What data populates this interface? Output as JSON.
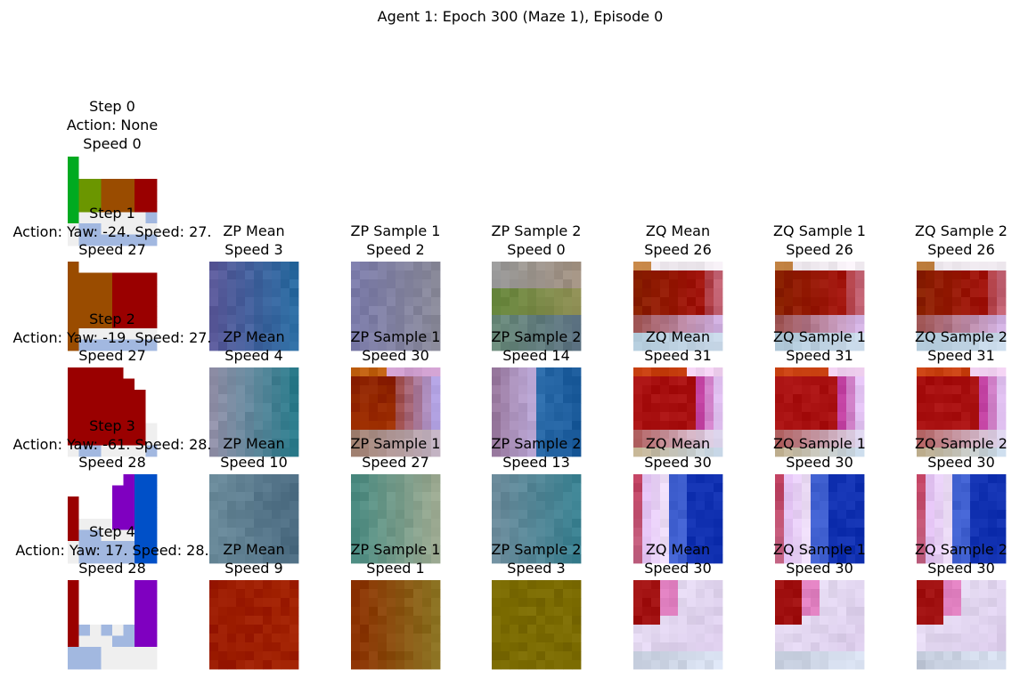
{
  "figure": {
    "suptitle": "Agent 1: Epoch 300 (Maze 1), Episode 0"
  },
  "step0": {
    "title_lines": [
      "Step 0",
      "Action: None",
      "Speed 0"
    ]
  },
  "rows": [
    {
      "step_label": "Step 1",
      "action_label": "Action: Yaw: -24. Speed: 27.",
      "obs_speed": "Speed 27",
      "panels": [
        {
          "title": "ZP Mean",
          "speed": "Speed 3"
        },
        {
          "title": "ZP Sample 1",
          "speed": "Speed 2"
        },
        {
          "title": "ZP Sample 2",
          "speed": "Speed 0"
        },
        {
          "title": "ZQ Mean",
          "speed": "Speed 26"
        },
        {
          "title": "ZQ Sample 1",
          "speed": "Speed 26"
        },
        {
          "title": "ZQ Sample 2",
          "speed": "Speed 26"
        }
      ]
    },
    {
      "step_label": "Step 2",
      "action_label": "Action: Yaw: -19. Speed: 27.",
      "obs_speed": "Speed 27",
      "panels": [
        {
          "title": "ZP Mean",
          "speed": "Speed 4"
        },
        {
          "title": "ZP Sample 1",
          "speed": "Speed 30"
        },
        {
          "title": "ZP Sample 2",
          "speed": "Speed 14"
        },
        {
          "title": "ZQ Mean",
          "speed": "Speed 31"
        },
        {
          "title": "ZQ Sample 1",
          "speed": "Speed 31"
        },
        {
          "title": "ZQ Sample 2",
          "speed": "Speed 31"
        }
      ]
    },
    {
      "step_label": "Step 3",
      "action_label": "Action: Yaw: -61. Speed: 28.",
      "obs_speed": "Speed 28",
      "panels": [
        {
          "title": "ZP Mean",
          "speed": "Speed 10"
        },
        {
          "title": "ZP Sample 1",
          "speed": "Speed 27"
        },
        {
          "title": "ZP Sample 2",
          "speed": "Speed 13"
        },
        {
          "title": "ZQ Mean",
          "speed": "Speed 30"
        },
        {
          "title": "ZQ Sample 1",
          "speed": "Speed 30"
        },
        {
          "title": "ZQ Sample 2",
          "speed": "Speed 30"
        }
      ]
    },
    {
      "step_label": "Step 4",
      "action_label": "Action: Yaw: 17. Speed: 28.",
      "obs_speed": "Speed 28",
      "panels": [
        {
          "title": "ZP Mean",
          "speed": "Speed 9"
        },
        {
          "title": "ZP Sample 1",
          "speed": "Speed 1"
        },
        {
          "title": "ZP Sample 2",
          "speed": "Speed 3"
        },
        {
          "title": "ZQ Mean",
          "speed": "Speed 30"
        },
        {
          "title": "ZQ Sample 1",
          "speed": "Speed 30"
        },
        {
          "title": "ZQ Sample 2",
          "speed": "Speed 30"
        }
      ]
    }
  ],
  "colors": {
    "maze_red": "#9a0000",
    "maze_brown": "#9a4c00",
    "maze_olive": "#6b9600",
    "agent_green": "#00aa20",
    "floor_white": "#efefef",
    "floor_blue": "#a2b8e0",
    "wall_purple": "#7f00c0",
    "wall_blue": "#0050c8"
  }
}
